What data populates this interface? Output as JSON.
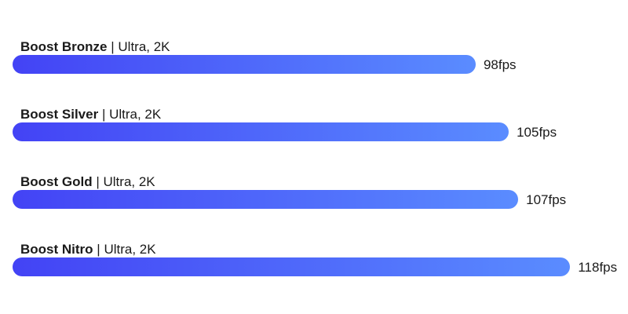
{
  "chart_data": {
    "type": "bar",
    "orientation": "horizontal",
    "categories": [
      "Boost Bronze",
      "Boost Silver",
      "Boost Gold",
      "Boost Nitro"
    ],
    "setting_label": "Ultra, 2K",
    "separator": "|",
    "values": [
      98,
      105,
      107,
      118
    ],
    "value_labels": [
      "98fps",
      "105fps",
      "107fps",
      "118fps"
    ],
    "unit": "fps",
    "title": "",
    "xlabel": "",
    "ylabel": "",
    "grid": false,
    "legend": "none",
    "colors": {
      "bar_gradient_start": "#4343f5",
      "bar_gradient_end": "#5a8cff",
      "text": "#1a1a1a"
    }
  }
}
